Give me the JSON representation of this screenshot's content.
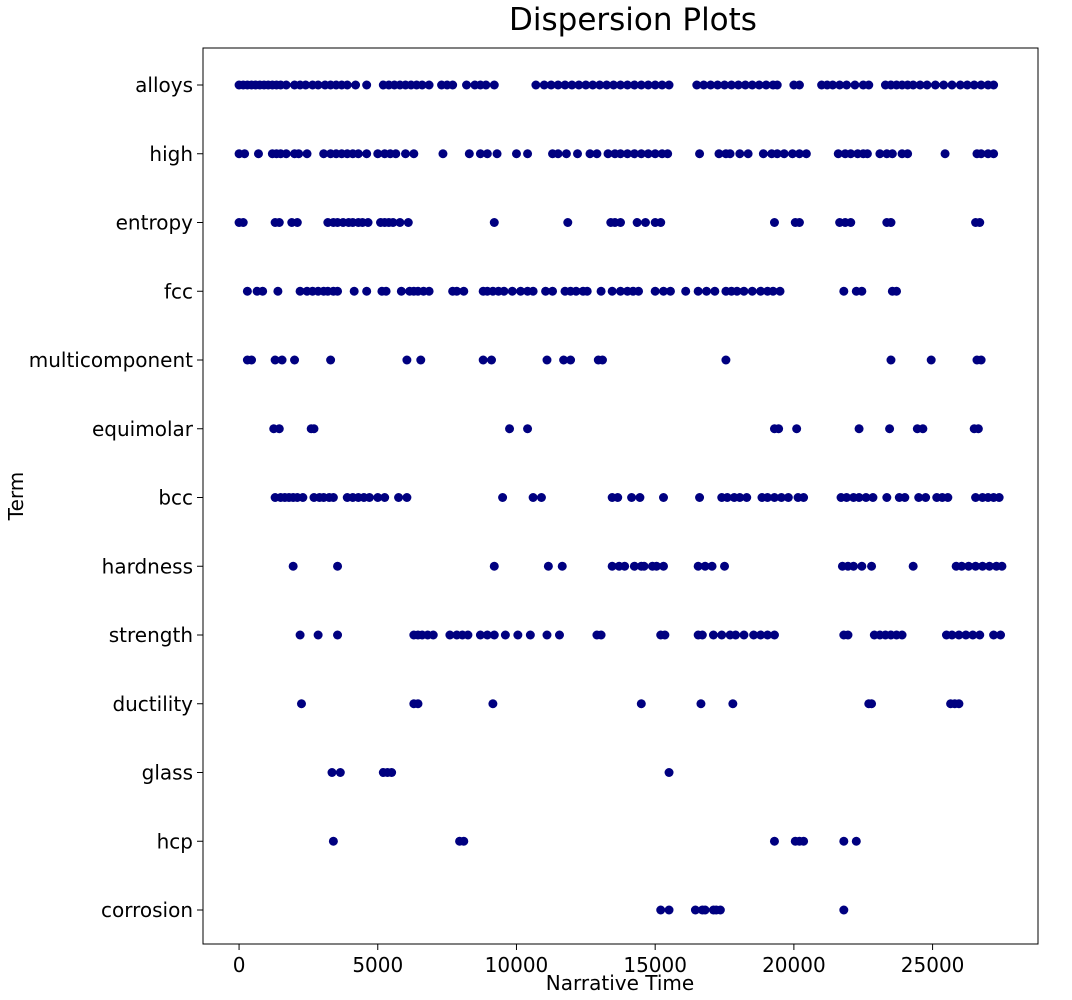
{
  "chart_data": {
    "type": "scatter",
    "title": "Dispersion Plots",
    "xlabel": "Narrative Time",
    "ylabel": "Term",
    "xlim": [
      -1300,
      28800
    ],
    "xticks": [
      0,
      5000,
      10000,
      15000,
      20000,
      25000
    ],
    "xtick_labels": [
      "0",
      "5000",
      "10000",
      "15000",
      "20000",
      "25000"
    ],
    "marker_color": "#000080",
    "grid": false,
    "terms": [
      "alloys",
      "high",
      "entropy",
      "fcc",
      "multicomponent",
      "equimolar",
      "bcc",
      "hardness",
      "strength",
      "ductility",
      "glass",
      "hcp",
      "corrosion"
    ],
    "series": [
      {
        "term": "alloys",
        "x": [
          0,
          150,
          300,
          450,
          600,
          750,
          900,
          1050,
          1200,
          1350,
          1500,
          1700,
          2000,
          2200,
          2400,
          2650,
          2850,
          3100,
          3300,
          3500,
          3700,
          3900,
          4200,
          4600,
          5200,
          5400,
          5600,
          5800,
          6000,
          6200,
          6400,
          6600,
          6850,
          7300,
          7500,
          7700,
          8200,
          8500,
          8700,
          8900,
          9200,
          10700,
          11000,
          11250,
          11500,
          11750,
          12000,
          12250,
          12500,
          12750,
          13000,
          13250,
          13500,
          13750,
          14000,
          14250,
          14500,
          14750,
          15000,
          15250,
          15500,
          16500,
          16750,
          17000,
          17250,
          17500,
          17750,
          18000,
          18250,
          18500,
          18750,
          19000,
          19250,
          19400,
          20000,
          20200,
          21000,
          21200,
          21400,
          21650,
          21900,
          22200,
          22500,
          22700,
          23300,
          23500,
          23700,
          23900,
          24100,
          24300,
          24550,
          24800,
          25100,
          25400,
          25700,
          26000,
          26250,
          26500,
          26750,
          27000,
          27200
        ]
      },
      {
        "term": "high",
        "x": [
          0,
          200,
          700,
          1200,
          1350,
          1500,
          1700,
          2000,
          2150,
          2450,
          3050,
          3300,
          3500,
          3700,
          3900,
          4100,
          4300,
          4600,
          5000,
          5250,
          5450,
          5650,
          6000,
          6300,
          7350,
          8300,
          8700,
          8950,
          9300,
          10000,
          10400,
          11300,
          11500,
          11800,
          12200,
          12650,
          12900,
          13300,
          13550,
          13750,
          14000,
          14250,
          14500,
          14750,
          15000,
          15250,
          15450,
          16600,
          17300,
          17550,
          17700,
          18050,
          18350,
          18900,
          19200,
          19400,
          19650,
          19950,
          20200,
          20450,
          21600,
          21850,
          22050,
          22300,
          22500,
          22650,
          23100,
          23350,
          23550,
          23900,
          24100,
          25450,
          26600,
          26750,
          27000,
          27200
        ]
      },
      {
        "term": "entropy",
        "x": [
          0,
          150,
          1300,
          1450,
          1900,
          2100,
          3200,
          3400,
          3550,
          3750,
          3950,
          4100,
          4300,
          4450,
          4650,
          5100,
          5250,
          5400,
          5550,
          5800,
          6100,
          9200,
          11850,
          13400,
          13550,
          13750,
          14350,
          14650,
          15000,
          15200,
          19300,
          20050,
          20200,
          21650,
          21850,
          22050,
          23350,
          23500,
          26550,
          26700
        ]
      },
      {
        "term": "fcc",
        "x": [
          300,
          650,
          850,
          1400,
          2200,
          2450,
          2650,
          2850,
          3050,
          3200,
          3400,
          3550,
          4150,
          4600,
          5150,
          5300,
          5850,
          6150,
          6300,
          6450,
          6650,
          6850,
          7700,
          7850,
          8100,
          8800,
          8950,
          9150,
          9350,
          9550,
          9850,
          10150,
          10400,
          10600,
          11050,
          11300,
          11750,
          11950,
          12150,
          12400,
          12550,
          13050,
          13450,
          13750,
          14000,
          14200,
          14400,
          15000,
          15300,
          15550,
          16100,
          16550,
          16850,
          17150,
          17550,
          17750,
          17950,
          18200,
          18500,
          18800,
          19050,
          19250,
          19500,
          21800,
          22250,
          22450,
          23550,
          23700
        ]
      },
      {
        "term": "multicomponent",
        "x": [
          300,
          450,
          1300,
          1550,
          2000,
          3300,
          6050,
          6550,
          8800,
          9100,
          11100,
          11700,
          11950,
          12950,
          13100,
          17550,
          23500,
          24950,
          26600,
          26750
        ]
      },
      {
        "term": "equimolar",
        "x": [
          1250,
          1450,
          2600,
          2700,
          9750,
          10400,
          19300,
          19450,
          20100,
          22350,
          23450,
          24450,
          24650,
          26500,
          26650
        ]
      },
      {
        "term": "bcc",
        "x": [
          1300,
          1500,
          1650,
          1800,
          1950,
          2100,
          2300,
          2700,
          2900,
          3050,
          3250,
          3400,
          3900,
          4100,
          4300,
          4500,
          4700,
          5000,
          5250,
          5750,
          6050,
          9500,
          10600,
          10900,
          13450,
          13650,
          14150,
          14450,
          15300,
          16600,
          17400,
          17600,
          17850,
          18050,
          18300,
          18850,
          19050,
          19300,
          19550,
          19800,
          20150,
          20350,
          21700,
          21900,
          22150,
          22350,
          22600,
          22850,
          23350,
          23800,
          24000,
          24500,
          24750,
          25150,
          25350,
          25550,
          26550,
          26800,
          27000,
          27200,
          27400
        ]
      },
      {
        "term": "hardness",
        "x": [
          1950,
          3550,
          9200,
          11150,
          11650,
          13450,
          13700,
          13900,
          14250,
          14500,
          14600,
          14900,
          15050,
          15300,
          16550,
          16800,
          17050,
          17500,
          21750,
          21950,
          22150,
          22450,
          22800,
          24300,
          25850,
          26050,
          26300,
          26550,
          26800,
          27050,
          27300,
          27500
        ]
      },
      {
        "term": "strength",
        "x": [
          2200,
          2850,
          3550,
          6300,
          6450,
          6600,
          6800,
          7000,
          7600,
          7850,
          8050,
          8250,
          8700,
          8950,
          9200,
          9600,
          10050,
          10500,
          11100,
          11550,
          12900,
          13050,
          15200,
          15350,
          16550,
          16700,
          17100,
          17400,
          17700,
          17900,
          18200,
          18550,
          18800,
          19050,
          19300,
          21800,
          21950,
          22900,
          23100,
          23300,
          23500,
          23700,
          23900,
          25500,
          25700,
          25950,
          26200,
          26450,
          26700,
          27200,
          27450
        ]
      },
      {
        "term": "ductility",
        "x": [
          2250,
          6300,
          6450,
          9150,
          14500,
          16650,
          17800,
          22700,
          22800,
          25650,
          25800,
          25950
        ]
      },
      {
        "term": "glass",
        "x": [
          3350,
          3650,
          5200,
          5350,
          5500,
          15500
        ]
      },
      {
        "term": "hcp",
        "x": [
          3400,
          7950,
          8100,
          19300,
          20050,
          20200,
          20350,
          21800,
          22250
        ]
      },
      {
        "term": "corrosion",
        "x": [
          15200,
          15500,
          16450,
          16700,
          16800,
          17100,
          17200,
          17350,
          21800
        ]
      }
    ]
  }
}
